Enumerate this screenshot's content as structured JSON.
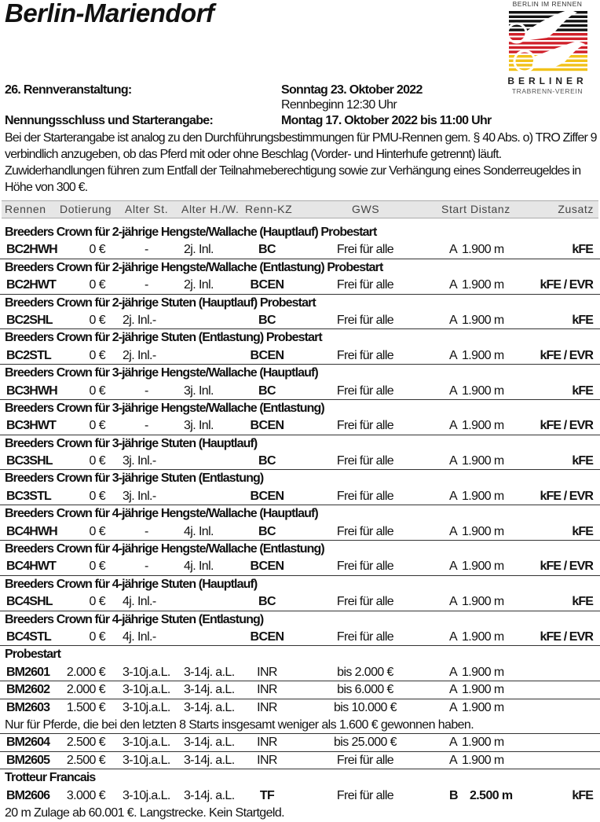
{
  "title": "Berlin-Mariendorf",
  "logo": {
    "top_text": "BERLIN IM RENNEN",
    "name": "BERLINER",
    "sub": "TRABRENN-VEREIN",
    "colors": [
      "#111111",
      "#d0202a",
      "#f2c21a"
    ]
  },
  "meeting": {
    "label": "26. Rennveranstaltung:",
    "date": "Sonntag 23. Oktober 2022",
    "start_time": "Rennbeginn 12:30 Uhr",
    "deadline_label": "Nennungsschluss und Starterangabe:",
    "deadline": "Montag 17. Oktober 2022 bis 11:00 Uhr",
    "notice": "Bei der Starterangabe ist analog zu den Durchführungsbestimmungen für PMU-Rennen gem. § 40 Abs. o) TRO Ziffer 9 verbindlich anzugeben, ob das Pferd mit oder ohne Beschlag (Vorder- und Hinterhufe getrennt) läuft. Zuwiderhandlungen führen zum Entfall der Teilnahmeberechtigung sowie zur Verhängung eines Sonderreugeldes in Höhe von 300 €."
  },
  "columns": [
    "Rennen",
    "Dotierung",
    "Alter St.",
    "Alter H./W.",
    "Renn-KZ",
    "GWS",
    "Start",
    "Distanz",
    "Zusatz"
  ],
  "lines": [
    {
      "heading": "Breeders Crown für 2-jährige Hengste/Wallache (Hauptlauf) Probestart"
    },
    {
      "code": "BC2HWH",
      "dot": "0 €",
      "ast": "-",
      "ahw": "2j. Inl.",
      "kz": "BC",
      "gws": "Frei für alle",
      "start": "A",
      "dist": "1.900 m",
      "zus": "kFE"
    },
    {
      "heading": "Breeders Crown für 2-jährige Hengste/Wallache (Entlastung) Probestart"
    },
    {
      "code": "BC2HWT",
      "dot": "0 €",
      "ast": "-",
      "ahw": "2j. Inl.",
      "kz": "BCEN",
      "gws": "Frei für alle",
      "start": "A",
      "dist": "1.900 m",
      "zus": "kFE / EVR"
    },
    {
      "heading": "Breeders Crown für 2-jährige Stuten (Hauptlauf) Probestart"
    },
    {
      "code": "BC2SHL",
      "dot": "0 €",
      "ast": "2j. Inl.-",
      "ahw": "",
      "kz": "BC",
      "gws": "Frei für alle",
      "start": "A",
      "dist": "1.900 m",
      "zus": "kFE"
    },
    {
      "heading": "Breeders Crown für 2-jährige Stuten (Entlastung) Probestart"
    },
    {
      "code": "BC2STL",
      "dot": "0 €",
      "ast": "2j. Inl.-",
      "ahw": "",
      "kz": "BCEN",
      "gws": "Frei für alle",
      "start": "A",
      "dist": "1.900 m",
      "zus": "kFE / EVR"
    },
    {
      "heading": "Breeders Crown für 3-jährige Hengste/Wallache (Hauptlauf)"
    },
    {
      "code": "BC3HWH",
      "dot": "0 €",
      "ast": "-",
      "ahw": "3j. Inl.",
      "kz": "BC",
      "gws": "Frei für alle",
      "start": "A",
      "dist": "1.900 m",
      "zus": "kFE"
    },
    {
      "heading": "Breeders Crown für 3-jährige Hengste/Wallache (Entlastung)"
    },
    {
      "code": "BC3HWT",
      "dot": "0 €",
      "ast": "-",
      "ahw": "3j. Inl.",
      "kz": "BCEN",
      "gws": "Frei für alle",
      "start": "A",
      "dist": "1.900 m",
      "zus": "kFE / EVR"
    },
    {
      "heading": "Breeders Crown für 3-jährige Stuten (Hauptlauf)"
    },
    {
      "code": "BC3SHL",
      "dot": "0 €",
      "ast": "3j. Inl.-",
      "ahw": "",
      "kz": "BC",
      "gws": "Frei für alle",
      "start": "A",
      "dist": "1.900 m",
      "zus": "kFE"
    },
    {
      "heading": "Breeders Crown für 3-jährige Stuten (Entlastung)"
    },
    {
      "code": "BC3STL",
      "dot": "0 €",
      "ast": "3j. Inl.-",
      "ahw": "",
      "kz": "BCEN",
      "gws": "Frei für alle",
      "start": "A",
      "dist": "1.900 m",
      "zus": "kFE / EVR"
    },
    {
      "heading": "Breeders Crown für 4-jährige Hengste/Wallache (Hauptlauf)"
    },
    {
      "code": "BC4HWH",
      "dot": "0 €",
      "ast": "-",
      "ahw": "4j. Inl.",
      "kz": "BC",
      "gws": "Frei für alle",
      "start": "A",
      "dist": "1.900 m",
      "zus": "kFE"
    },
    {
      "heading": "Breeders Crown für 4-jährige Hengste/Wallache (Entlastung)"
    },
    {
      "code": "BC4HWT",
      "dot": "0 €",
      "ast": "-",
      "ahw": "4j. Inl.",
      "kz": "BCEN",
      "gws": "Frei für alle",
      "start": "A",
      "dist": "1.900 m",
      "zus": "kFE / EVR"
    },
    {
      "heading": "Breeders Crown für 4-jährige Stuten (Hauptlauf)"
    },
    {
      "code": "BC4SHL",
      "dot": "0 €",
      "ast": "4j. Inl.-",
      "ahw": "",
      "kz": "BC",
      "gws": "Frei für alle",
      "start": "A",
      "dist": "1.900 m",
      "zus": "kFE"
    },
    {
      "heading": "Breeders Crown für 4-jährige Stuten (Entlastung)"
    },
    {
      "code": "BC4STL",
      "dot": "0 €",
      "ast": "4j. Inl.-",
      "ahw": "",
      "kz": "BCEN",
      "gws": "Frei für alle",
      "start": "A",
      "dist": "1.900 m",
      "zus": "kFE / EVR"
    },
    {
      "heading": "Probestart"
    },
    {
      "code": "BM2601",
      "dot": "2.000 €",
      "ast": "3-10j.a.L.",
      "ahw": "3-14j. a.L.",
      "kz": "INR",
      "gws": "bis 2.000 €",
      "start": "A",
      "dist": "1.900 m",
      "zus": ""
    },
    {
      "code": "BM2602",
      "dot": "2.000 €",
      "ast": "3-10j.a.L.",
      "ahw": "3-14j. a.L.",
      "kz": "INR",
      "gws": "bis 6.000 €",
      "start": "A",
      "dist": "1.900 m",
      "zus": ""
    },
    {
      "code": "BM2603",
      "dot": "1.500 €",
      "ast": "3-10j.a.L.",
      "ahw": "3-14j. a.L.",
      "kz": "INR",
      "gws": "bis 10.000 €",
      "start": "A",
      "dist": "1.900 m",
      "zus": "",
      "nosep": true
    },
    {
      "note": "Nur für Pferde, die bei den letzten 8 Starts insgesamt weniger als 1.600 € gewonnen haben."
    },
    {
      "code": "BM2604",
      "dot": "2.500 €",
      "ast": "3-10j.a.L.",
      "ahw": "3-14j. a.L.",
      "kz": "INR",
      "gws": "bis 25.000 €",
      "start": "A",
      "dist": "1.900 m",
      "zus": ""
    },
    {
      "code": "BM2605",
      "dot": "2.500 €",
      "ast": "3-10j.a.L.",
      "ahw": "3-14j. a.L.",
      "kz": "INR",
      "gws": "Frei für alle",
      "start": "A",
      "dist": "1.900 m",
      "zus": ""
    },
    {
      "heading": "Trotteur Francais"
    },
    {
      "code": "BM2606",
      "dot": "3.000 €",
      "ast": "3-10j.a.L.",
      "ahw": "3-14j. a.L.",
      "kz": "TF",
      "gws": "Frei für alle",
      "start": "B",
      "dist": "2.500 m",
      "zus": "kFE",
      "bold_dist": true,
      "nosep": true
    },
    {
      "note": "20 m Zulage ab 60.001 €. Langstrecke. Kein Startgeld."
    }
  ]
}
